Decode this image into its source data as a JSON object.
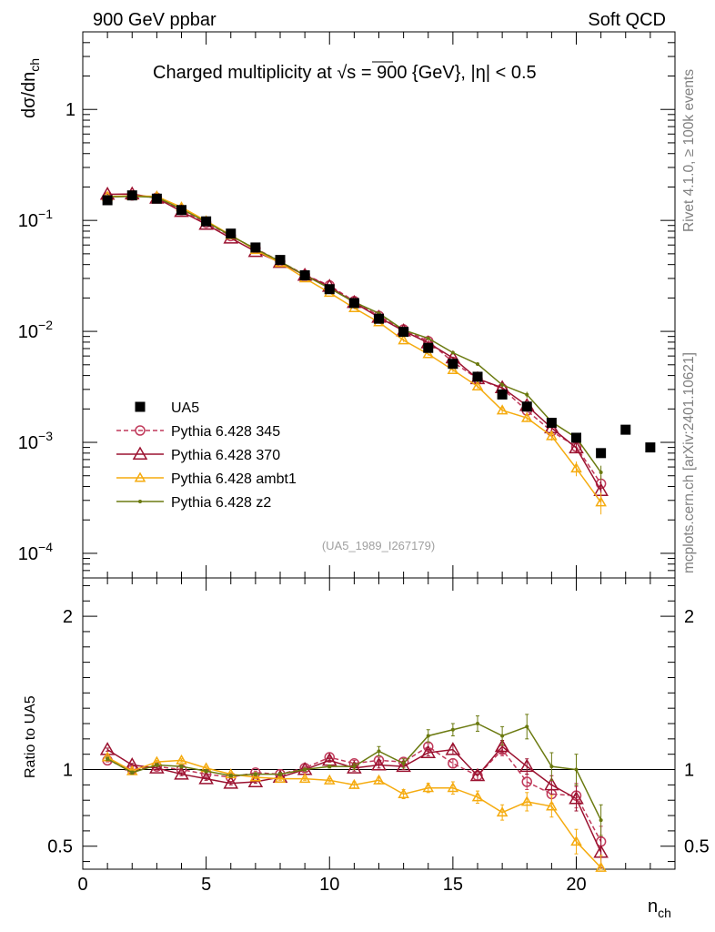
{
  "header": {
    "left": "900 GeV ppbar",
    "right": "Soft QCD"
  },
  "side_labels": {
    "rivet": "Rivet 4.1.0, ≥ 100k events",
    "mcplots": "mcplots.cern.ch [arXiv:2401.10621]"
  },
  "colors": {
    "ua5": "#000000",
    "p345": "#c0395a",
    "p370": "#9b1230",
    "ambt1": "#f5ab0f",
    "z2": "#6b7a10"
  },
  "chart_data": {
    "type": "line",
    "title_prefix": "Charged multiplicity at ",
    "title_sqrt": "√s",
    "title_suffix": " = 900 {GeV}, |η| < 0.5",
    "analysis_id": "(UA5_1989_I267179)",
    "xlabel_main": "n",
    "xlabel_sub": "ch",
    "ylabel_main": "dσ/dn",
    "ylabel_sub": "ch",
    "ratio_ylabel": "Ratio to UA5",
    "xlim": [
      0,
      24
    ],
    "ylim_log": [
      6e-05,
      5
    ],
    "ratio_ylim": [
      0.35,
      2.25
    ],
    "x_ticks": [
      0,
      5,
      10,
      15,
      20
    ],
    "x_tick_labels": [
      "0",
      "5",
      "10",
      "15",
      "20"
    ],
    "y_ticks": [
      0.0001,
      0.001,
      0.01,
      0.1,
      1
    ],
    "y_tick_labels": [
      {
        "base": "10",
        "exp": "−4"
      },
      {
        "base": "10",
        "exp": "−3"
      },
      {
        "base": "10",
        "exp": "−2"
      },
      {
        "base": "10",
        "exp": "−1"
      },
      {
        "base": "1",
        "exp": ""
      }
    ],
    "ratio_ticks": [
      0.5,
      1,
      2
    ],
    "ratio_tick_labels": [
      "0.5",
      "1",
      "2"
    ],
    "data": {
      "name": "UA5",
      "x": [
        1,
        2,
        3,
        4,
        5,
        6,
        7,
        8,
        9,
        10,
        11,
        12,
        13,
        14,
        15,
        16,
        17,
        18,
        19,
        20,
        21,
        22,
        23
      ],
      "y": [
        0.152,
        0.168,
        0.157,
        0.124,
        0.098,
        0.076,
        0.057,
        0.044,
        0.032,
        0.024,
        0.018,
        0.013,
        0.0099,
        0.0071,
        0.0051,
        0.0039,
        0.0027,
        0.0021,
        0.0015,
        0.0011,
        0.0008,
        0.0013,
        0.0009
      ]
    },
    "series": [
      {
        "name": "Pythia 6.428 345",
        "key": "p345",
        "marker": "circle",
        "dashed": true,
        "x": [
          1,
          2,
          3,
          4,
          5,
          6,
          7,
          8,
          9,
          10,
          11,
          12,
          13,
          14,
          15,
          16,
          17,
          18,
          19,
          20,
          21
        ],
        "ratio": [
          1.06,
          1.0,
          1.02,
          1.0,
          0.97,
          0.95,
          0.98,
          0.97,
          1.01,
          1.08,
          1.04,
          1.06,
          1.05,
          1.15,
          1.04,
          0.96,
          1.13,
          0.92,
          0.84,
          0.83,
          0.53
        ],
        "err": [
          0.01,
          0.01,
          0.01,
          0.01,
          0.01,
          0.01,
          0.01,
          0.01,
          0.01,
          0.01,
          0.02,
          0.02,
          0.02,
          0.02,
          0.03,
          0.03,
          0.04,
          0.05,
          0.06,
          0.08,
          0.1
        ]
      },
      {
        "name": "Pythia 6.428 370",
        "key": "p370",
        "marker": "triangle",
        "dashed": false,
        "x": [
          1,
          2,
          3,
          4,
          5,
          6,
          7,
          8,
          9,
          10,
          11,
          12,
          13,
          14,
          15,
          16,
          17,
          18,
          19,
          20,
          21
        ],
        "ratio": [
          1.13,
          1.03,
          1.01,
          0.97,
          0.94,
          0.91,
          0.92,
          0.95,
          1.0,
          1.06,
          1.01,
          1.03,
          1.02,
          1.11,
          1.13,
          0.96,
          1.15,
          1.02,
          0.9,
          0.81,
          0.46
        ],
        "err": [
          0.01,
          0.01,
          0.01,
          0.01,
          0.01,
          0.01,
          0.01,
          0.01,
          0.01,
          0.01,
          0.02,
          0.02,
          0.02,
          0.02,
          0.03,
          0.03,
          0.04,
          0.05,
          0.06,
          0.08,
          0.1
        ]
      },
      {
        "name": "Pythia 6.428 ambt1",
        "key": "ambt1",
        "marker": "triangle-small",
        "dashed": false,
        "x": [
          1,
          2,
          3,
          4,
          5,
          6,
          7,
          8,
          9,
          10,
          11,
          12,
          13,
          14,
          15,
          16,
          17,
          18,
          19,
          20,
          21
        ],
        "ratio": [
          1.08,
          0.99,
          1.05,
          1.06,
          1.01,
          0.97,
          0.95,
          0.94,
          0.94,
          0.93,
          0.9,
          0.93,
          0.84,
          0.88,
          0.88,
          0.82,
          0.72,
          0.79,
          0.76,
          0.53,
          0.36
        ],
        "err": [
          0.01,
          0.01,
          0.01,
          0.01,
          0.01,
          0.01,
          0.01,
          0.01,
          0.01,
          0.01,
          0.02,
          0.02,
          0.03,
          0.03,
          0.04,
          0.04,
          0.05,
          0.06,
          0.07,
          0.08,
          0.08
        ]
      },
      {
        "name": "Pythia 6.428 z2",
        "key": "z2",
        "marker": "dot",
        "dashed": false,
        "x": [
          1,
          2,
          3,
          4,
          5,
          6,
          7,
          8,
          9,
          10,
          11,
          12,
          13,
          14,
          15,
          16,
          17,
          18,
          19,
          20,
          21
        ],
        "ratio": [
          1.07,
          0.98,
          1.03,
          1.02,
          0.99,
          0.96,
          0.97,
          0.97,
          1.0,
          1.02,
          1.02,
          1.12,
          1.04,
          1.22,
          1.26,
          1.3,
          1.22,
          1.28,
          1.02,
          1.0,
          0.67
        ],
        "err": [
          0.01,
          0.01,
          0.01,
          0.01,
          0.01,
          0.01,
          0.01,
          0.01,
          0.01,
          0.01,
          0.02,
          0.03,
          0.03,
          0.04,
          0.04,
          0.05,
          0.06,
          0.08,
          0.09,
          0.1,
          0.1
        ]
      }
    ]
  }
}
